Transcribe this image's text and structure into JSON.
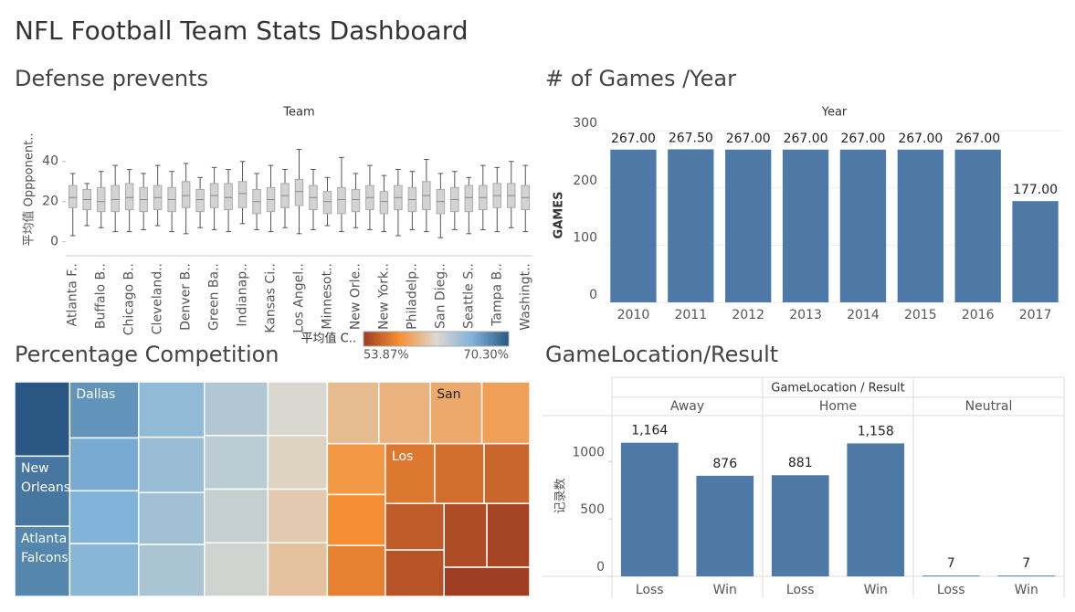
{
  "title": "NFL Football Team Stats Dashboard",
  "chart_data": [
    {
      "type": "box",
      "title": "Defense prevents",
      "x_label": "Team",
      "y_label": "平均值 Oppponent..",
      "categories": [
        "Atlanta F..",
        null,
        "Buffalo B..",
        null,
        "Chicago B..",
        null,
        "Cleveland..",
        null,
        "Denver B..",
        null,
        "Green Ba..",
        null,
        "Indianap..",
        null,
        "Kansas Ci..",
        null,
        "Los Angel..",
        null,
        "Minnesot..",
        null,
        "New Orle..",
        null,
        "New York..",
        null,
        "Philadelp..",
        null,
        "San Dieg..",
        null,
        "Seattle S..",
        null,
        "Tampa B..",
        null,
        "Washingt.."
      ],
      "min": [
        3,
        8,
        7,
        5,
        5,
        6,
        8,
        5,
        4,
        7,
        6,
        5,
        9,
        6,
        5,
        7,
        4,
        6,
        8,
        5,
        7,
        6,
        5,
        3,
        6,
        5,
        2,
        6,
        4,
        6,
        5,
        7,
        5
      ],
      "q1": [
        17,
        16,
        15,
        15,
        16,
        15,
        16,
        15,
        17,
        15,
        17,
        16,
        17,
        14,
        15,
        17,
        18,
        16,
        14,
        14,
        15,
        16,
        14,
        16,
        15,
        16,
        14,
        15,
        15,
        16,
        17,
        17,
        16
      ],
      "median": [
        22,
        21,
        20,
        21,
        22,
        21,
        22,
        21,
        23,
        21,
        23,
        22,
        24,
        20,
        21,
        23,
        25,
        22,
        20,
        21,
        21,
        22,
        20,
        22,
        21,
        23,
        20,
        21,
        22,
        22,
        23,
        23,
        22
      ],
      "q3": [
        28,
        26,
        27,
        28,
        29,
        27,
        28,
        27,
        30,
        26,
        29,
        29,
        30,
        26,
        27,
        29,
        31,
        28,
        25,
        27,
        26,
        28,
        25,
        28,
        27,
        30,
        26,
        27,
        28,
        28,
        29,
        29,
        28
      ],
      "max": [
        34,
        29,
        35,
        38,
        36,
        34,
        38,
        35,
        39,
        32,
        37,
        36,
        40,
        34,
        38,
        36,
        46,
        36,
        32,
        42,
        34,
        38,
        33,
        36,
        35,
        41,
        34,
        35,
        32,
        38,
        37,
        40,
        38
      ],
      "color": "#d3d3d3",
      "ylim": [
        -7,
        59
      ],
      "yticks": [
        0,
        20,
        40
      ]
    },
    {
      "type": "bar",
      "title": "# of Games /Year",
      "x_label": "Year",
      "y_label": "GAMES",
      "categories": [
        "2010",
        "2011",
        "2012",
        "2013",
        "2014",
        "2015",
        "2016",
        "2017"
      ],
      "values": [
        267,
        267.5,
        267,
        267,
        267,
        267,
        267,
        177
      ],
      "value_labels": [
        "267.00",
        "267.50",
        "267.00",
        "267.00",
        "267.00",
        "267.00",
        "267.00",
        "177.00"
      ],
      "color": "#4e79a7",
      "ylim": [
        0,
        305
      ],
      "yticks": [
        0,
        100,
        200,
        300
      ],
      "grid": true
    },
    {
      "type": "treemap",
      "title": "Percentage Competition",
      "names": [
        null,
        "New Orleans",
        "Atlanta Falcons",
        "Dallas",
        null,
        null,
        null,
        null,
        null,
        null,
        null,
        null,
        null,
        null,
        null,
        null,
        null,
        null,
        null,
        null,
        null,
        "San",
        null,
        null,
        null,
        null,
        "Los",
        null,
        null,
        null,
        null,
        null,
        null,
        null
      ],
      "sizes": [
        18,
        17,
        17,
        17,
        16,
        16,
        16,
        16,
        16,
        15,
        15,
        15,
        15,
        15,
        15,
        14,
        14,
        14,
        14,
        14,
        14,
        14,
        13,
        13,
        13,
        13,
        13,
        13,
        12,
        12,
        12,
        12,
        12,
        11
      ],
      "color_values": [
        70.3,
        68.9,
        68.2,
        67.6,
        66.5,
        66.1,
        65.8,
        65.4,
        65.0,
        64.7,
        64.3,
        64.0,
        63.5,
        63.1,
        62.6,
        62.2,
        61.7,
        61.2,
        60.8,
        60.4,
        59.9,
        59.4,
        58.9,
        58.4,
        57.9,
        57.3,
        56.8,
        56.3,
        55.9,
        55.4,
        55.0,
        54.6,
        54.2,
        53.87
      ],
      "color_legend": {
        "title": "平均值 C..",
        "min": {
          "value": 53.87,
          "label": "53.87%"
        },
        "max": {
          "value": 70.3,
          "label": "70.30%"
        }
      },
      "color_range": [
        "#9e3d22",
        "#f69035",
        "#dcd9d0",
        "#7fb2d8",
        "#2a5783"
      ]
    },
    {
      "type": "grouped_bar",
      "title": "GameLocation/Result",
      "header": "GameLocation / Result",
      "y_label": "记录数",
      "groups": [
        "Away",
        "Home",
        "Neutral"
      ],
      "categories": [
        "Loss",
        "Win"
      ],
      "values": [
        [
          1164,
          876
        ],
        [
          881,
          1158
        ],
        [
          7,
          7
        ]
      ],
      "value_labels": [
        [
          "1,164",
          "876"
        ],
        [
          "881",
          "1,158"
        ],
        [
          "7",
          "7"
        ]
      ],
      "color": "#4e79a7",
      "ylim": [
        0,
        1400
      ],
      "yticks": [
        0,
        500,
        1000
      ]
    }
  ]
}
